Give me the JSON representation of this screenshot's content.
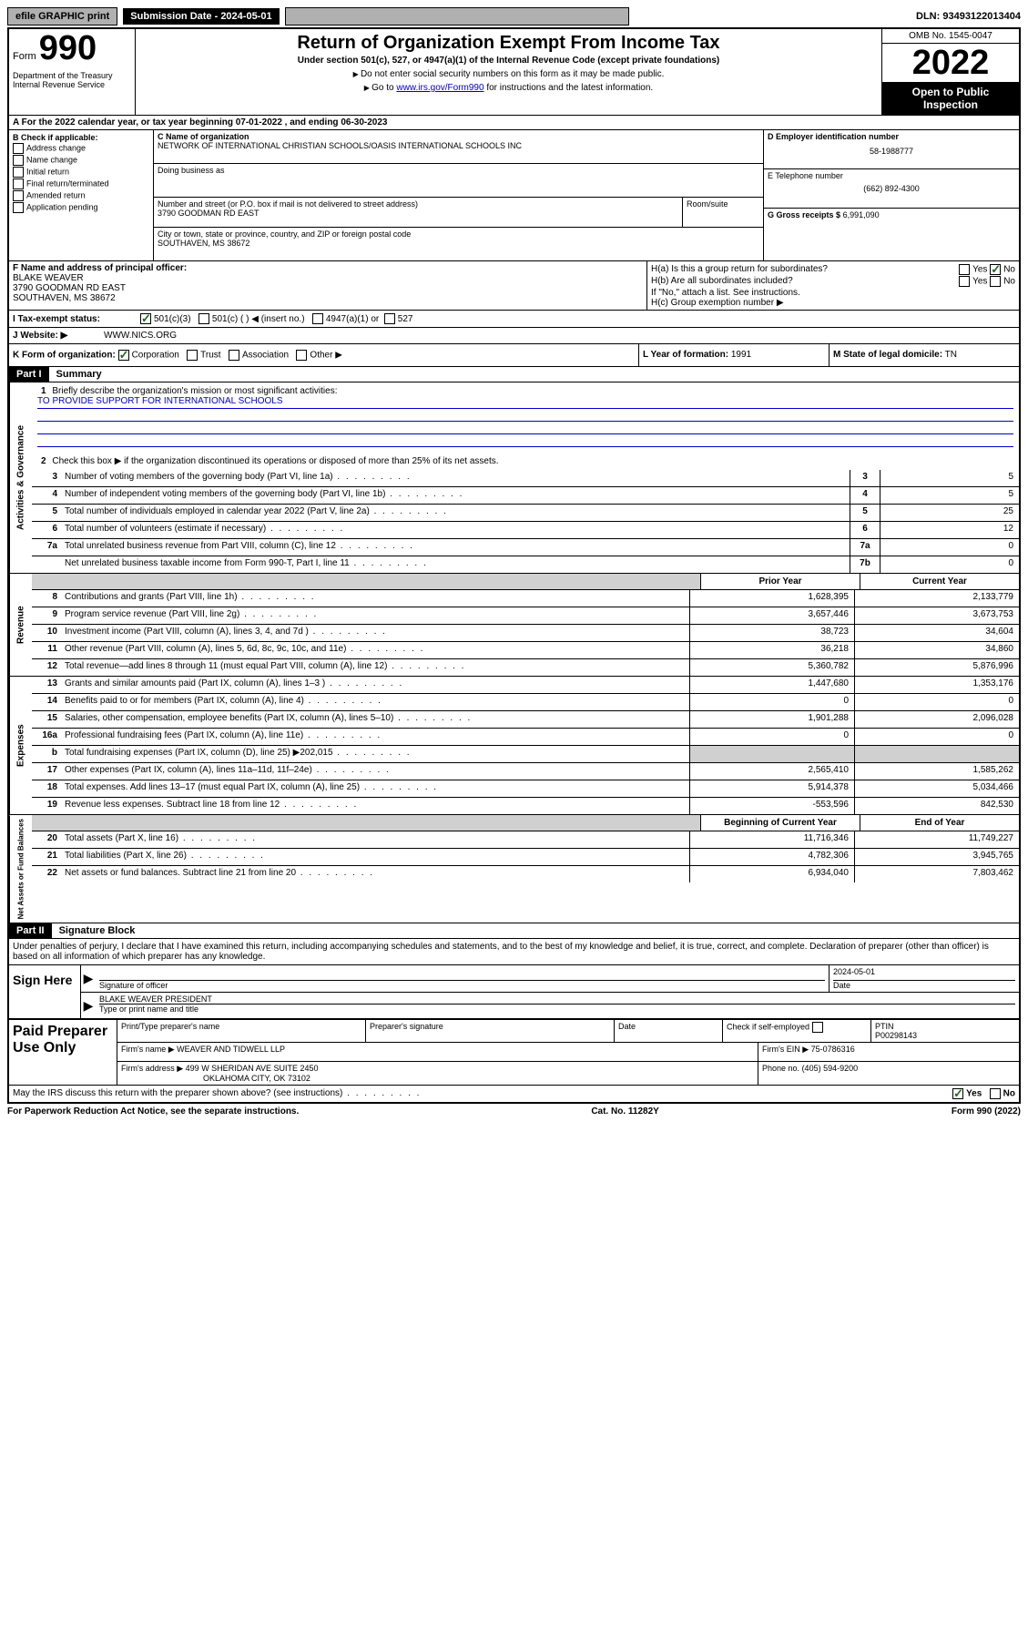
{
  "top": {
    "efile": "efile GRAPHIC print",
    "submission": "Submission Date - 2024-05-01",
    "dln": "DLN: 93493122013404"
  },
  "header": {
    "form_prefix": "Form",
    "form_number": "990",
    "dept": "Department of the Treasury Internal Revenue Service",
    "title": "Return of Organization Exempt From Income Tax",
    "subtitle": "Under section 501(c), 527, or 4947(a)(1) of the Internal Revenue Code (except private foundations)",
    "instr1": "Do not enter social security numbers on this form as it may be made public.",
    "instr2_pre": "Go to ",
    "instr2_link": "www.irs.gov/Form990",
    "instr2_post": " for instructions and the latest information.",
    "omb": "OMB No. 1545-0047",
    "year": "2022",
    "inspection": "Open to Public Inspection"
  },
  "row_a": "A For the 2022 calendar year, or tax year beginning 07-01-2022   , and ending 06-30-2023",
  "b": {
    "label": "B Check if applicable:",
    "items": [
      "Address change",
      "Name change",
      "Initial return",
      "Final return/terminated",
      "Amended return",
      "Application pending"
    ]
  },
  "c": {
    "name_label": "C Name of organization",
    "name": "NETWORK OF INTERNATIONAL CHRISTIAN SCHOOLS/OASIS INTERNATIONAL SCHOOLS INC",
    "dba_label": "Doing business as",
    "addr_label": "Number and street (or P.O. box if mail is not delivered to street address)",
    "addr": "3790 GOODMAN RD EAST",
    "room_label": "Room/suite",
    "city_label": "City or town, state or province, country, and ZIP or foreign postal code",
    "city": "SOUTHAVEN, MS  38672"
  },
  "d": {
    "ein_label": "D Employer identification number",
    "ein": "58-1988777",
    "phone_label": "E Telephone number",
    "phone": "(662) 892-4300",
    "gross_label": "G Gross receipts $",
    "gross": "6,991,090"
  },
  "f": {
    "label": "F  Name and address of principal officer:",
    "name": "BLAKE WEAVER",
    "addr1": "3790 GOODMAN RD EAST",
    "addr2": "SOUTHAVEN, MS  38672"
  },
  "h": {
    "a_label": "H(a)  Is this a group return for subordinates?",
    "b_label": "H(b)  Are all subordinates included?",
    "b_note": "If \"No,\" attach a list. See instructions.",
    "c_label": "H(c)  Group exemption number ▶",
    "yes": "Yes",
    "no": "No"
  },
  "i": {
    "label": "I   Tax-exempt status:",
    "opt1": "501(c)(3)",
    "opt2": "501(c) (  ) ◀ (insert no.)",
    "opt3": "4947(a)(1) or",
    "opt4": "527"
  },
  "j": {
    "label": "J   Website: ▶",
    "value": "WWW.NICS.ORG"
  },
  "k": {
    "label": "K Form of organization:",
    "corp": "Corporation",
    "trust": "Trust",
    "assoc": "Association",
    "other": "Other ▶",
    "l_label": "L Year of formation:",
    "l_val": "1991",
    "m_label": "M State of legal domicile:",
    "m_val": "TN"
  },
  "part1": {
    "header": "Part I",
    "title": "Summary",
    "q1": "Briefly describe the organization's mission or most significant activities:",
    "mission": "TO PROVIDE SUPPORT FOR INTERNATIONAL SCHOOLS",
    "q2": "Check this box ▶        if the organization discontinued its operations or disposed of more than 25% of its net assets.",
    "vert_labels": {
      "gov": "Activities & Governance",
      "rev": "Revenue",
      "exp": "Expenses",
      "net": "Net Assets or Fund Balances"
    },
    "gov_lines": [
      {
        "n": "3",
        "t": "Number of voting members of the governing body (Part VI, line 1a)",
        "b": "3",
        "v": "5"
      },
      {
        "n": "4",
        "t": "Number of independent voting members of the governing body (Part VI, line 1b)",
        "b": "4",
        "v": "5"
      },
      {
        "n": "5",
        "t": "Total number of individuals employed in calendar year 2022 (Part V, line 2a)",
        "b": "5",
        "v": "25"
      },
      {
        "n": "6",
        "t": "Total number of volunteers (estimate if necessary)",
        "b": "6",
        "v": "12"
      },
      {
        "n": "7a",
        "t": "Total unrelated business revenue from Part VIII, column (C), line 12",
        "b": "7a",
        "v": "0"
      },
      {
        "n": "",
        "t": "Net unrelated business taxable income from Form 990-T, Part I, line 11",
        "b": "7b",
        "v": "0"
      }
    ],
    "col_headers": {
      "prior": "Prior Year",
      "current": "Current Year",
      "begin": "Beginning of Current Year",
      "end": "End of Year"
    },
    "rev_lines": [
      {
        "n": "8",
        "t": "Contributions and grants (Part VIII, line 1h)",
        "p": "1,628,395",
        "c": "2,133,779"
      },
      {
        "n": "9",
        "t": "Program service revenue (Part VIII, line 2g)",
        "p": "3,657,446",
        "c": "3,673,753"
      },
      {
        "n": "10",
        "t": "Investment income (Part VIII, column (A), lines 3, 4, and 7d )",
        "p": "38,723",
        "c": "34,604"
      },
      {
        "n": "11",
        "t": "Other revenue (Part VIII, column (A), lines 5, 6d, 8c, 9c, 10c, and 11e)",
        "p": "36,218",
        "c": "34,860"
      },
      {
        "n": "12",
        "t": "Total revenue—add lines 8 through 11 (must equal Part VIII, column (A), line 12)",
        "p": "5,360,782",
        "c": "5,876,996"
      }
    ],
    "exp_lines": [
      {
        "n": "13",
        "t": "Grants and similar amounts paid (Part IX, column (A), lines 1–3 )",
        "p": "1,447,680",
        "c": "1,353,176"
      },
      {
        "n": "14",
        "t": "Benefits paid to or for members (Part IX, column (A), line 4)",
        "p": "0",
        "c": "0"
      },
      {
        "n": "15",
        "t": "Salaries, other compensation, employee benefits (Part IX, column (A), lines 5–10)",
        "p": "1,901,288",
        "c": "2,096,028"
      },
      {
        "n": "16a",
        "t": "Professional fundraising fees (Part IX, column (A), line 11e)",
        "p": "0",
        "c": "0"
      },
      {
        "n": "b",
        "t": "Total fundraising expenses (Part IX, column (D), line 25) ▶202,015",
        "p": "",
        "c": "",
        "shaded": true
      },
      {
        "n": "17",
        "t": "Other expenses (Part IX, column (A), lines 11a–11d, 11f–24e)",
        "p": "2,565,410",
        "c": "1,585,262"
      },
      {
        "n": "18",
        "t": "Total expenses. Add lines 13–17 (must equal Part IX, column (A), line 25)",
        "p": "5,914,378",
        "c": "5,034,466"
      },
      {
        "n": "19",
        "t": "Revenue less expenses. Subtract line 18 from line 12",
        "p": "-553,596",
        "c": "842,530"
      }
    ],
    "net_lines": [
      {
        "n": "20",
        "t": "Total assets (Part X, line 16)",
        "p": "11,716,346",
        "c": "11,749,227"
      },
      {
        "n": "21",
        "t": "Total liabilities (Part X, line 26)",
        "p": "4,782,306",
        "c": "3,945,765"
      },
      {
        "n": "22",
        "t": "Net assets or fund balances. Subtract line 21 from line 20",
        "p": "6,934,040",
        "c": "7,803,462"
      }
    ]
  },
  "part2": {
    "header": "Part II",
    "title": "Signature Block",
    "disclaimer": "Under penalties of perjury, I declare that I have examined this return, including accompanying schedules and statements, and to the best of my knowledge and belief, it is true, correct, and complete. Declaration of preparer (other than officer) is based on all information of which preparer has any knowledge.",
    "sign_here": "Sign Here",
    "sig_officer": "Signature of officer",
    "date": "Date",
    "sig_date": "2024-05-01",
    "officer_name": "BLAKE WEAVER PRESIDENT",
    "officer_label": "Type or print name and title",
    "paid": "Paid Preparer Use Only",
    "p_name_label": "Print/Type preparer's name",
    "p_sig_label": "Preparer's signature",
    "p_date_label": "Date",
    "p_check": "Check         if self-employed",
    "ptin_label": "PTIN",
    "ptin": "P00298143",
    "firm_name_label": "Firm's name    ▶",
    "firm_name": "WEAVER AND TIDWELL LLP",
    "firm_ein_label": "Firm's EIN ▶",
    "firm_ein": "75-0786316",
    "firm_addr_label": "Firm's address ▶",
    "firm_addr1": "499 W SHERIDAN AVE SUITE 2450",
    "firm_addr2": "OKLAHOMA CITY, OK  73102",
    "firm_phone_label": "Phone no.",
    "firm_phone": "(405) 594-9200"
  },
  "footer": {
    "discuss": "May the IRS discuss this return with the preparer shown above? (see instructions)",
    "yes": "Yes",
    "no": "No",
    "paperwork": "For Paperwork Reduction Act Notice, see the separate instructions.",
    "cat": "Cat. No. 11282Y",
    "form": "Form 990 (2022)"
  }
}
